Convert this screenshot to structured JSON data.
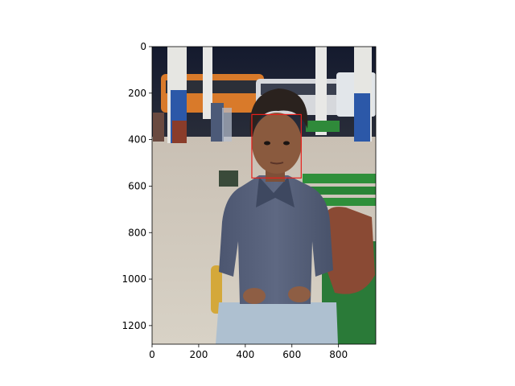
{
  "chart_data": {
    "type": "image",
    "title": "",
    "xlabel": "",
    "ylabel": "",
    "xlim": [
      0,
      960
    ],
    "ylim": [
      1280,
      0
    ],
    "x_ticks": [
      0,
      200,
      400,
      600,
      800
    ],
    "y_ticks": [
      0,
      200,
      400,
      600,
      800,
      1000,
      1200
    ],
    "grid": false,
    "legend": "none",
    "image_content": "photograph",
    "box": {
      "x0": 428,
      "y0": 292,
      "x1": 640,
      "y1": 565,
      "color": "#e8201c"
    }
  },
  "colors": {
    "box_edge": "#e8201c",
    "axes": "#000000"
  }
}
